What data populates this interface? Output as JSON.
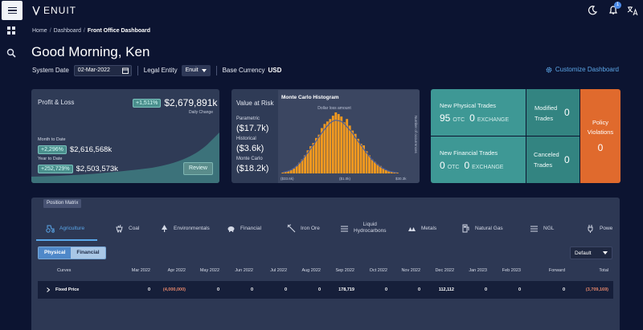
{
  "app": {
    "logo_text": "ENUIT",
    "notification_count": "1"
  },
  "breadcrumb": {
    "home": "Home",
    "dashboard": "Dashboard",
    "current": "Front Office Dashboard"
  },
  "greeting": "Good Morning, Ken",
  "filters": {
    "system_date_label": "System Date",
    "system_date": "02-Mar-2022",
    "legal_entity_label": "Legal Entity",
    "legal_entity": "Enuit",
    "base_currency_label": "Base Currency",
    "base_currency": "USD",
    "customize_label": "Customize Dashboard"
  },
  "profit_loss": {
    "title": "Profit & Loss",
    "daily_pct": "+1,511%",
    "daily_value": "$2,679,891k",
    "daily_label": "Daily Change",
    "mtd_label": "Month to Date",
    "mtd_pct": "+2,296%",
    "mtd_value": "$2,616,568k",
    "ytd_label": "Year to Date",
    "ytd_pct": "+252,729%",
    "ytd_value": "$2,503,573k",
    "review_label": "Review"
  },
  "var": {
    "title": "Value at Risk",
    "parametric_label": "Parametric",
    "parametric": "($17.7k)",
    "historical_label": "Historical",
    "historical": "($3.6k)",
    "montecarlo_label": "Monte Carlo",
    "montecarlo": "($18.2k)"
  },
  "chart_data": {
    "type": "bar",
    "title": "Monte Carlo Histogram",
    "xlabel": "Dollar loss amount",
    "ylabel": "Number of occurrences",
    "x_ticks": [
      "($33.6k)",
      "($1.0k)",
      "$30.3k"
    ],
    "values": [
      1,
      2,
      3,
      4,
      6,
      9,
      13,
      17,
      22,
      28,
      33,
      37,
      43,
      47,
      55,
      60,
      63,
      66,
      70,
      74,
      72,
      69,
      62,
      66,
      58,
      52,
      48,
      42,
      36,
      34,
      27,
      22,
      17,
      14,
      11,
      9,
      6,
      4,
      3,
      2,
      1,
      1
    ],
    "curve_color": "#4a5f9c",
    "bar_color": "#f39a1f"
  },
  "trades": {
    "physical_title": "New Physical Trades",
    "physical_otc": "95",
    "physical_exchange": "0",
    "financial_title": "New Financial Trades",
    "financial_otc": "0",
    "financial_exchange": "0",
    "otc_label": "OTC",
    "exchange_label": "EXCHANGE",
    "modified_label_1": "Modified",
    "modified_label_2": "Trades",
    "modified": "0",
    "canceled_label_1": "Canceled",
    "canceled_label_2": "Trades",
    "canceled": "0",
    "policy_label_1": "Policy",
    "policy_label_2": "Violations",
    "policy": "0"
  },
  "matrix": {
    "tag": "Position Matrix",
    "tabs": [
      "Agriculture",
      "Coal",
      "Environmentals",
      "Financial",
      "Iron Ore",
      "Liquid",
      "Hydrocarbons",
      "Metals",
      "Natural Gas",
      "NGL",
      "Powe"
    ],
    "toggle": [
      "Physical",
      "Financial"
    ],
    "view": "Default",
    "columns": [
      "Curves",
      "Mar 2022",
      "Apr 2022",
      "May 2022",
      "Jun 2022",
      "Jul 2022",
      "Aug 2022",
      "Sep 2022",
      "Oct 2022",
      "Nov 2022",
      "Dec 2022",
      "Jan 2023",
      "Feb 2023",
      "Forward",
      "Total"
    ],
    "row": [
      "Fixed Price",
      "0",
      "(4,000,000)",
      "0",
      "0",
      "0",
      "0",
      "178,719",
      "0",
      "0",
      "112,112",
      "0",
      "0",
      "0",
      "(3,709,169)"
    ]
  }
}
